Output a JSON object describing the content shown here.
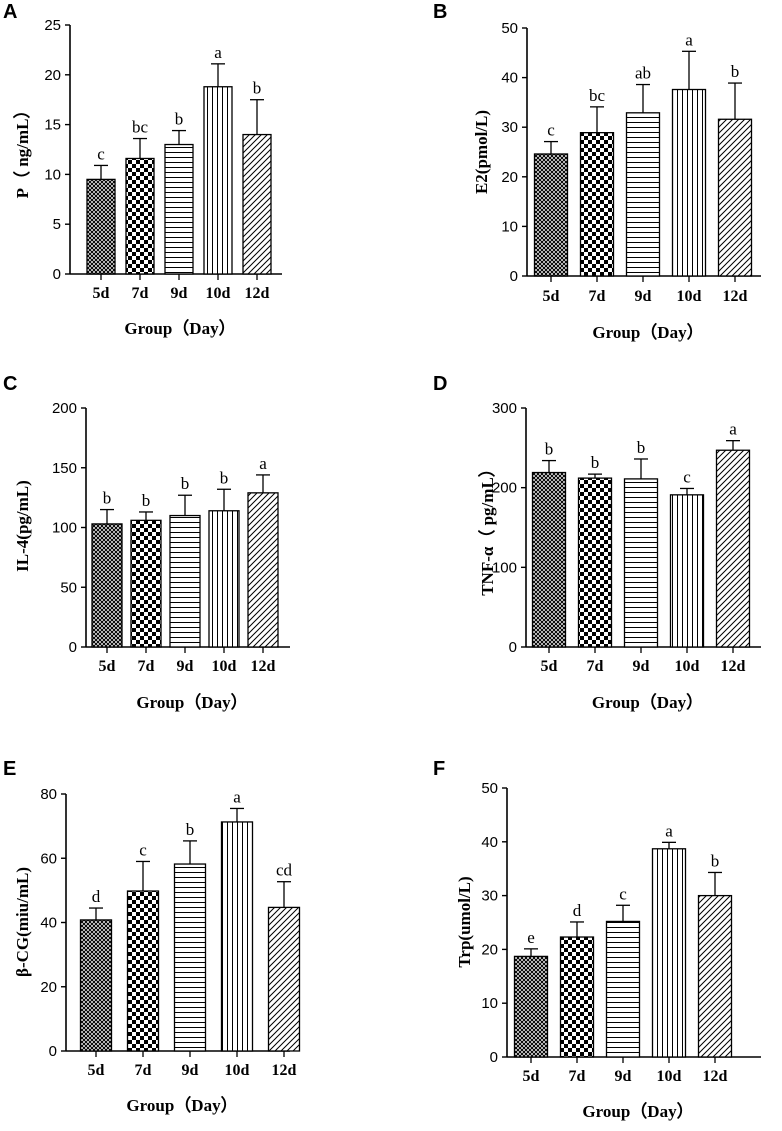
{
  "chart_data": [
    {
      "panel": "A",
      "type": "bar",
      "categories": [
        "5d",
        "7d",
        "9d",
        "10d",
        "12d"
      ],
      "values": [
        9.5,
        11.6,
        13.0,
        18.8,
        14.0
      ],
      "errors": [
        1.4,
        2.0,
        1.4,
        2.3,
        3.5
      ],
      "letters": [
        "c",
        "bc",
        "b",
        "a",
        "b"
      ],
      "patterns": [
        "crosshatch",
        "checker",
        "hlines",
        "vlines",
        "diag"
      ],
      "xlabel": "Group（Day）",
      "ylabel": "P（ ng/mL）",
      "ylim": [
        0,
        25
      ],
      "yticks": [
        "0",
        "5",
        "10",
        "15",
        "20",
        "25"
      ]
    },
    {
      "panel": "B",
      "type": "bar",
      "categories": [
        "5d",
        "7d",
        "9d",
        "10d",
        "12d"
      ],
      "values": [
        24.6,
        28.9,
        32.9,
        37.6,
        31.6
      ],
      "errors": [
        2.5,
        5.2,
        5.7,
        7.7,
        7.3
      ],
      "letters": [
        "c",
        "bc",
        "ab",
        "a",
        "b"
      ],
      "patterns": [
        "crosshatch",
        "checker",
        "hlines",
        "vlines",
        "diag"
      ],
      "xlabel": "Group（Day）",
      "ylabel": "E2(pmol/L)",
      "ylim": [
        0,
        50
      ],
      "yticks": [
        "0",
        "10",
        "20",
        "30",
        "40",
        "50"
      ]
    },
    {
      "panel": "C",
      "type": "bar",
      "categories": [
        "5d",
        "7d",
        "9d",
        "10d",
        "12d"
      ],
      "values": [
        103,
        106,
        110,
        114,
        129
      ],
      "errors": [
        12,
        7,
        17,
        18,
        15
      ],
      "letters": [
        "b",
        "b",
        "b",
        "b",
        "a"
      ],
      "patterns": [
        "crosshatch",
        "checker",
        "hlines",
        "vlines",
        "diag"
      ],
      "xlabel": "Group（Day）",
      "ylabel": "IL-4(pg/mL)",
      "ylim": [
        0,
        200
      ],
      "yticks": [
        "0",
        "50",
        "100",
        "150",
        "200"
      ]
    },
    {
      "panel": "D",
      "type": "bar",
      "categories": [
        "5d",
        "7d",
        "9d",
        "10d",
        "12d"
      ],
      "values": [
        219,
        212,
        211,
        191,
        247
      ],
      "errors": [
        15,
        5,
        25,
        8,
        12
      ],
      "letters": [
        "b",
        "b",
        "b",
        "c",
        "a"
      ],
      "patterns": [
        "crosshatch",
        "checker",
        "hlines",
        "vlines",
        "diag"
      ],
      "xlabel": "Group（Day）",
      "ylabel": "TNF-α（ pg/mL）",
      "ylim": [
        0,
        300
      ],
      "yticks": [
        "0",
        "100",
        "200",
        "300"
      ]
    },
    {
      "panel": "E",
      "type": "bar",
      "categories": [
        "5d",
        "7d",
        "9d",
        "10d",
        "12d"
      ],
      "values": [
        40.8,
        49.8,
        58.2,
        71.3,
        44.7
      ],
      "errors": [
        3.7,
        9.2,
        7.2,
        4.2,
        8.0
      ],
      "letters": [
        "d",
        "c",
        "b",
        "a",
        "cd"
      ],
      "patterns": [
        "crosshatch",
        "checker",
        "hlines",
        "vlines",
        "diag"
      ],
      "xlabel": "Group（Day）",
      "ylabel": "β-CG(miu/mL)",
      "ylim": [
        0,
        80
      ],
      "yticks": [
        "0",
        "20",
        "40",
        "60",
        "80"
      ]
    },
    {
      "panel": "F",
      "type": "bar",
      "categories": [
        "5d",
        "7d",
        "9d",
        "10d",
        "12d"
      ],
      "values": [
        18.7,
        22.3,
        25.2,
        38.7,
        30.0
      ],
      "errors": [
        1.4,
        2.8,
        3.0,
        1.2,
        4.3
      ],
      "letters": [
        "e",
        "d",
        "c",
        "a",
        "b"
      ],
      "patterns": [
        "crosshatch",
        "checker",
        "hlines",
        "vlines",
        "diag"
      ],
      "xlabel": "Group（Day）",
      "ylabel": "Trp(umol/L)",
      "ylim": [
        0,
        50
      ],
      "yticks": [
        "0",
        "10",
        "20",
        "30",
        "40",
        "50"
      ]
    }
  ]
}
